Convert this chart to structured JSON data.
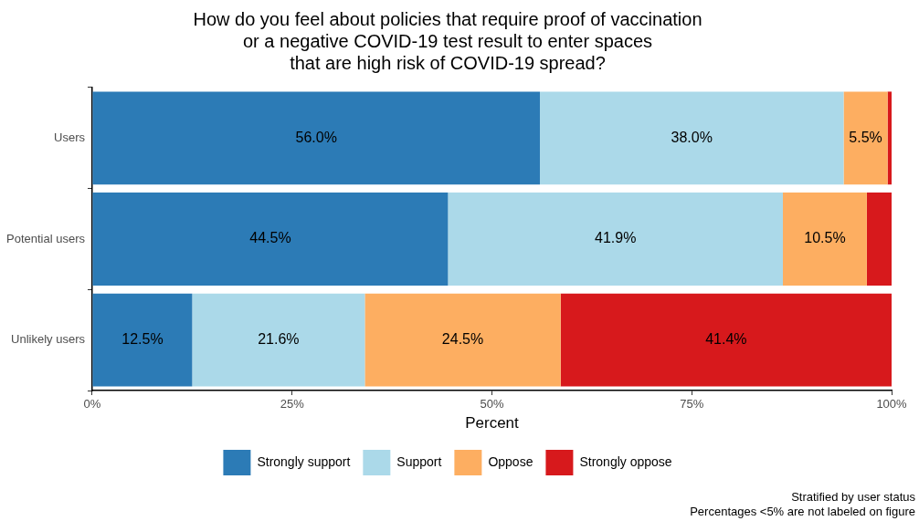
{
  "chart_data": {
    "type": "bar",
    "orientation": "horizontal",
    "stacked": true,
    "title": "How do you feel about policies that require proof of vaccination\nor a negative COVID-19 test result to enter spaces\nthat are high risk of COVID-19 spread?",
    "xlabel": "Percent",
    "categories": [
      "Users",
      "Potential users",
      "Unlikely users"
    ],
    "series": [
      {
        "name": "Strongly support",
        "color": "#2c7bb6",
        "values": [
          56.0,
          44.5,
          12.5
        ],
        "value_labels": [
          "56.0%",
          "44.5%",
          "12.5%"
        ]
      },
      {
        "name": "Support",
        "color": "#abd9e9",
        "values": [
          38.0,
          41.9,
          21.6
        ],
        "value_labels": [
          "38.0%",
          "41.9%",
          "21.6%"
        ]
      },
      {
        "name": "Oppose",
        "color": "#fdae61",
        "values": [
          5.5,
          10.5,
          24.5
        ],
        "value_labels": [
          "5.5%",
          "10.5%",
          "24.5%"
        ]
      },
      {
        "name": "Strongly oppose",
        "color": "#d7191c",
        "values": [
          0.5,
          3.1,
          41.4
        ],
        "value_labels": [
          null,
          null,
          "41.4%"
        ]
      }
    ],
    "xlim": [
      0,
      100
    ],
    "xticks": [
      {
        "value": 0,
        "label": "0%"
      },
      {
        "value": 25,
        "label": "25%"
      },
      {
        "value": 50,
        "label": "50%"
      },
      {
        "value": 75,
        "label": "75%"
      },
      {
        "value": 100,
        "label": "100%"
      }
    ],
    "grid": false,
    "legend": "bottom",
    "annotations": [
      "Stratified by user status",
      "Percentages <5% are not labeled on figure"
    ]
  }
}
